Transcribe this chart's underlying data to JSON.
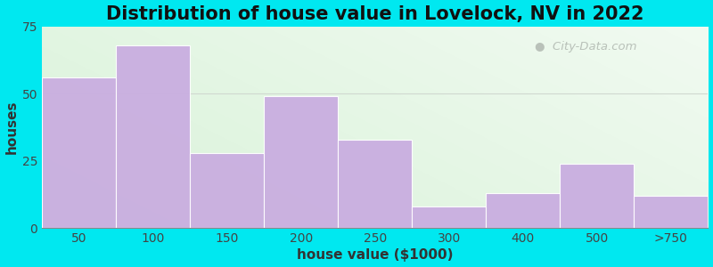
{
  "title": "Distribution of house value in Lovelock, NV in 2022",
  "xlabel": "house value ($1000)",
  "ylabel": "houses",
  "categories": [
    "50",
    "100",
    "150",
    "200",
    "250",
    "300",
    "400",
    "500",
    ">750"
  ],
  "values": [
    56,
    68,
    28,
    49,
    33,
    8,
    13,
    24,
    12
  ],
  "bar_color": "#c9aee0",
  "ylim": [
    0,
    75
  ],
  "yticks": [
    0,
    25,
    50,
    75
  ],
  "background_outer": "#00e8f0",
  "background_inner_topleft": "#d6edd6",
  "background_inner_topright": "#f0f5f0",
  "background_inner_bottomleft": "#c8e8c8",
  "background_inner_bottomright": "#e8f0e8",
  "title_fontsize": 15,
  "axis_label_fontsize": 11,
  "tick_fontsize": 10,
  "watermark_text": "City-Data.com",
  "watermark_color": "#b0b8b0",
  "grid_color": "#d0d8d0",
  "spine_color": "#888888"
}
